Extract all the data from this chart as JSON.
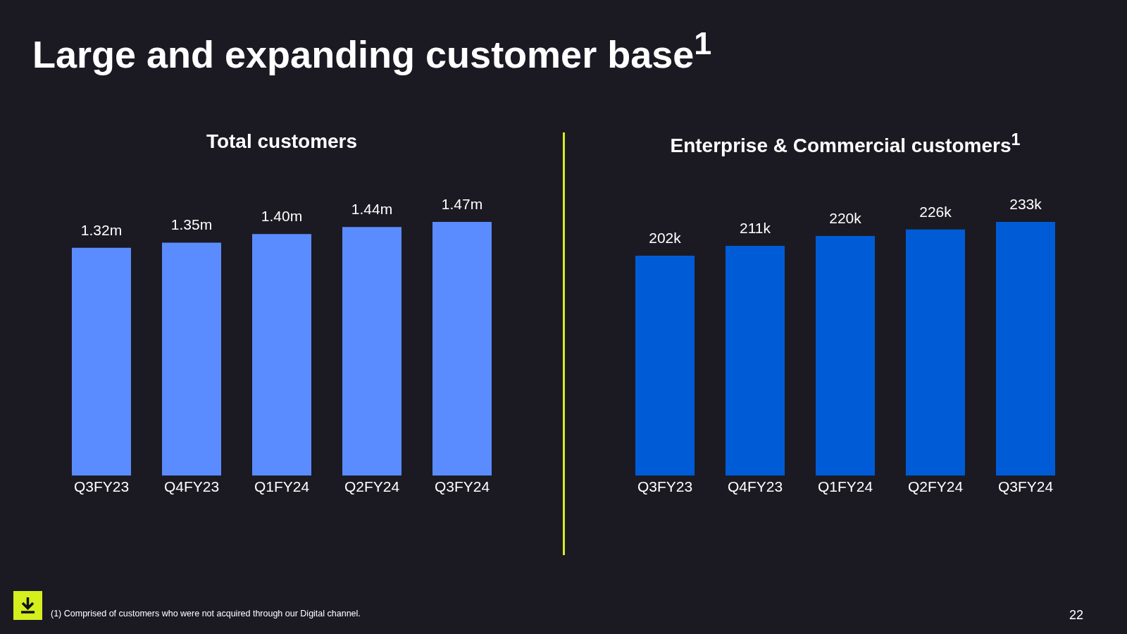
{
  "chart_data": [
    {
      "type": "bar",
      "title": "Large and expanding customer base$^{1}$",
      "subtitle": "Total customers",
      "categories": [
        "Q3FY23",
        "Q4FY23",
        "Q1FY24",
        "Q2FY24",
        "Q3FY24"
      ],
      "values": [
        1.32,
        1.35,
        1.4,
        1.44,
        1.47
      ],
      "value_labels": [
        "1.32m",
        "1.35m",
        "1.40m",
        "1.44m",
        "1.47m"
      ],
      "color": "#5b8cff",
      "annotations": [
        "(1)  Comprised of customers who were not acquired through our Digital channel.",
        "22"
      ]
    },
    {
      "type": "bar",
      "subtitle": "Enterprise & Commercial customers$^{1}$",
      "categories": [
        "Q3FY23",
        "Q4FY23",
        "Q1FY24",
        "Q2FY24",
        "Q3FY24"
      ],
      "values": [
        202,
        211,
        220,
        226,
        233
      ],
      "value_labels": [
        "202k",
        "211k",
        "220k",
        "226k",
        "233k"
      ],
      "color": "#005cd6"
    }
  ]
}
